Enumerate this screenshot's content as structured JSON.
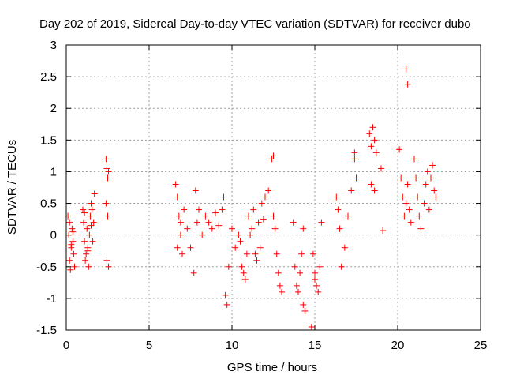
{
  "chart_data": {
    "type": "scatter",
    "title": "Day 202 of 2019, Sidereal Day-to-day VTEC variation (SDTVAR) for receiver dubo",
    "xlabel": "GPS time / hours",
    "ylabel": "SDTVAR / TECUs",
    "xlim": [
      0,
      25
    ],
    "ylim": [
      -1.5,
      3
    ],
    "xticks": [
      0,
      5,
      10,
      15,
      20,
      25
    ],
    "xtick_labels": [
      "0",
      "5",
      "10",
      "15",
      "20",
      "25"
    ],
    "yticks": [
      -1.5,
      -1,
      -0.5,
      0,
      0.5,
      1,
      1.5,
      2,
      2.5,
      3
    ],
    "ytick_labels": [
      "-1.5",
      "-1",
      "-0.5",
      "0",
      "0.5",
      "1",
      "1.5",
      "2",
      "2.5",
      "3"
    ],
    "grid": true,
    "marker": "+",
    "color": "#ff0000",
    "series": [
      {
        "name": "SDTVAR",
        "x": [
          0.1,
          0.15,
          0.2,
          0.25,
          0.3,
          0.35,
          0.4,
          0.45,
          0.5,
          0.2,
          0.3,
          0.4,
          1.0,
          1.05,
          1.1,
          1.15,
          1.2,
          1.25,
          1.3,
          1.35,
          1.4,
          1.45,
          1.5,
          1.55,
          1.6,
          1.65,
          1.7,
          1.1,
          1.3,
          1.5,
          2.4,
          2.45,
          2.5,
          2.55,
          2.4,
          2.5,
          2.45,
          2.55,
          6.6,
          6.7,
          6.8,
          6.9,
          7.0,
          6.7,
          6.9,
          7.1,
          7.3,
          7.5,
          7.7,
          7.8,
          7.9,
          8.0,
          8.2,
          8.4,
          8.6,
          8.8,
          9.0,
          9.2,
          9.4,
          9.5,
          9.6,
          9.7,
          9.8,
          10.0,
          10.2,
          10.4,
          10.6,
          10.8,
          11.0,
          11.2,
          11.4,
          11.6,
          11.8,
          12.0,
          12.2,
          10.5,
          10.7,
          10.9,
          11.1,
          11.3,
          11.5,
          11.7,
          11.9,
          12.4,
          12.5,
          12.6,
          12.7,
          12.8,
          12.9,
          13.0,
          12.5,
          13.7,
          13.8,
          13.9,
          14.0,
          14.1,
          14.2,
          14.3,
          14.4,
          14.3,
          14.8,
          14.9,
          15.0,
          15.1,
          15.2,
          15.3,
          15.4,
          15.0,
          16.3,
          16.4,
          16.5,
          16.6,
          16.8,
          17.0,
          17.2,
          17.4,
          17.4,
          17.5,
          18.3,
          18.4,
          18.5,
          18.6,
          18.7,
          18.4,
          18.6,
          19.0,
          19.1,
          20.1,
          20.2,
          20.3,
          20.4,
          20.5,
          20.6,
          20.7,
          20.8,
          20.6,
          20.5,
          21.0,
          21.1,
          21.2,
          21.3,
          21.4,
          21.6,
          21.7,
          21.8,
          21.9,
          22.0,
          22.1,
          22.2,
          22.3
        ],
        "y": [
          0.3,
          0.0,
          -0.4,
          -0.55,
          -0.2,
          0.1,
          -0.1,
          -0.3,
          -0.5,
          0.2,
          -0.15,
          0.05,
          0.4,
          0.2,
          -0.1,
          -0.4,
          -0.3,
          0.1,
          -0.2,
          -0.5,
          0.0,
          0.3,
          0.5,
          0.4,
          -0.1,
          0.2,
          0.65,
          0.35,
          -0.25,
          0.15,
          1.2,
          1.05,
          0.9,
          1.0,
          0.5,
          0.3,
          -0.4,
          -0.5,
          0.8,
          0.6,
          0.3,
          0.0,
          -0.3,
          -0.2,
          0.2,
          0.4,
          0.1,
          -0.2,
          -0.6,
          0.7,
          0.2,
          0.4,
          0.0,
          0.3,
          0.2,
          0.1,
          0.35,
          0.15,
          0.4,
          0.6,
          -0.95,
          -1.1,
          -0.5,
          0.1,
          -0.2,
          0.0,
          -0.5,
          -0.7,
          0.3,
          0.1,
          -0.3,
          0.2,
          0.5,
          0.6,
          0.7,
          -0.1,
          -0.6,
          -0.3,
          0.0,
          0.4,
          -0.4,
          -0.2,
          0.25,
          1.2,
          0.3,
          0.1,
          -0.3,
          -0.6,
          -0.8,
          -0.9,
          1.25,
          0.2,
          -0.5,
          -0.8,
          -0.9,
          -0.6,
          -0.3,
          0.1,
          -1.2,
          -1.1,
          -1.45,
          -0.3,
          -0.6,
          -0.8,
          -0.9,
          -0.5,
          0.2,
          -0.7,
          0.6,
          0.4,
          0.1,
          -0.5,
          -0.2,
          0.3,
          0.7,
          1.2,
          1.3,
          0.9,
          1.6,
          1.4,
          1.7,
          1.5,
          1.3,
          0.8,
          0.7,
          1.05,
          0.07,
          1.35,
          0.9,
          0.6,
          0.3,
          0.5,
          0.8,
          0.4,
          0.2,
          2.38,
          2.62,
          1.2,
          0.9,
          0.6,
          0.3,
          0.1,
          0.5,
          0.8,
          1.0,
          0.4,
          0.9,
          1.1,
          0.7,
          0.6
        ]
      }
    ]
  }
}
